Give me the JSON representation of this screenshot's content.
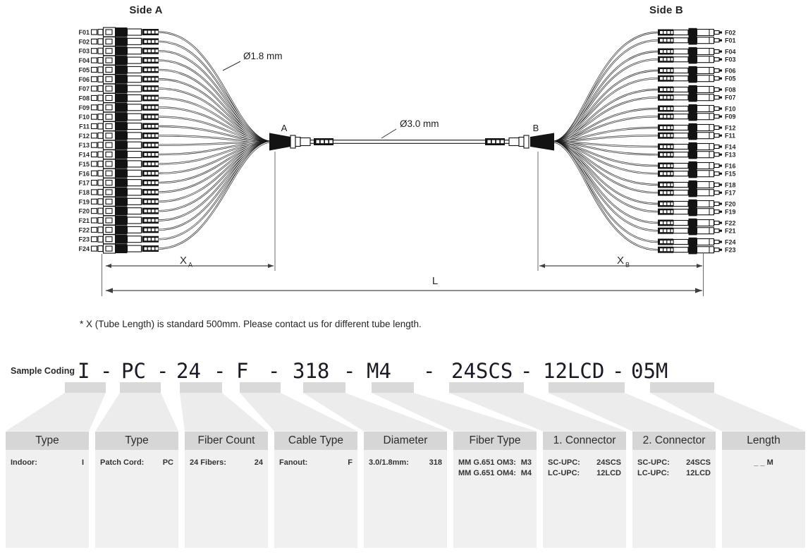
{
  "diagram": {
    "side_a_title": "Side A",
    "side_b_title": "Side B",
    "breakout_a_label": "A",
    "breakout_b_label": "B",
    "fanout_diameter_label": "Ø1.8 mm",
    "trunk_diameter_label": "Ø3.0 mm",
    "side_a_fibers": [
      "F01",
      "F02",
      "F03",
      "F04",
      "F05",
      "F06",
      "F07",
      "F08",
      "F09",
      "F10",
      "F11",
      "F12",
      "F13",
      "F14",
      "F15",
      "F16",
      "F17",
      "F18",
      "F19",
      "F20",
      "F21",
      "F22",
      "F23",
      "F24"
    ],
    "side_b_pairs": [
      [
        "F02",
        "F01"
      ],
      [
        "F04",
        "F03"
      ],
      [
        "F06",
        "F05"
      ],
      [
        "F08",
        "F07"
      ],
      [
        "F10",
        "F09"
      ],
      [
        "F12",
        "F11"
      ],
      [
        "F14",
        "F13"
      ],
      [
        "F16",
        "F15"
      ],
      [
        "F18",
        "F17"
      ],
      [
        "F20",
        "F19"
      ],
      [
        "F22",
        "F21"
      ],
      [
        "F24",
        "F23"
      ]
    ],
    "dimensions": {
      "tube_a": {
        "base": "X",
        "sub": "A"
      },
      "tube_b": {
        "base": "X",
        "sub": "B"
      },
      "total": "L"
    },
    "note": "* X (Tube Length) is standard 500mm. Please contact us for different tube length."
  },
  "coding": {
    "label": "Sample Coding",
    "separator": "-",
    "tokens": [
      "I",
      "PC",
      "24",
      "F",
      "318",
      "M4",
      "24SCS",
      "12LCD",
      "05M"
    ]
  },
  "table": {
    "columns": [
      {
        "title": "Type",
        "rows": [
          {
            "label": "Indoor:",
            "code": "I"
          }
        ]
      },
      {
        "title": "Type",
        "rows": [
          {
            "label": "Patch Cord:",
            "code": "PC"
          }
        ]
      },
      {
        "title": "Fiber Count",
        "rows": [
          {
            "label": "24 Fibers:",
            "code": "24"
          }
        ]
      },
      {
        "title": "Cable Type",
        "rows": [
          {
            "label": "Fanout:",
            "code": "F"
          }
        ]
      },
      {
        "title": "Diameter",
        "rows": [
          {
            "label": "3.0/1.8mm:",
            "code": "318"
          }
        ]
      },
      {
        "title": "Fiber Type",
        "rows": [
          {
            "label": "MM G.651 OM3:",
            "code": "M3"
          },
          {
            "label": "MM G.651 OM4:",
            "code": "M4"
          }
        ]
      },
      {
        "title": "1. Connector",
        "rows": [
          {
            "label": "SC-UPC:",
            "code": "24SCS"
          },
          {
            "label": "LC-UPC:",
            "code": "12LCD"
          }
        ]
      },
      {
        "title": "2. Connector",
        "rows": [
          {
            "label": "SC-UPC:",
            "code": "24SCS"
          },
          {
            "label": "LC-UPC:",
            "code": "12LCD"
          }
        ]
      },
      {
        "title": "Length",
        "rows": [
          {
            "label": "",
            "code": "_ _ M"
          }
        ]
      }
    ]
  },
  "colors": {
    "ink": "#1d1d1d",
    "tab_gray": "#d9d9d9",
    "funnel_gray": "#ececec",
    "header_gray": "#d6d6d6",
    "cell_gray": "#f0f0f0"
  }
}
